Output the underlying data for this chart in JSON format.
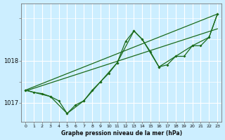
{
  "background_color": "#cceeff",
  "grid_color": "#ffffff",
  "line_color": "#1a6b1a",
  "title": "Graphe pression niveau de la mer (hPa)",
  "ylabel_ticks": [
    1017,
    1018
  ],
  "xlim": [
    -0.5,
    23.5
  ],
  "ylim": [
    1016.55,
    1019.35
  ],
  "ytick_fontsize": 6,
  "xtick_fontsize": 4.5,
  "x_ticks": [
    0,
    1,
    2,
    3,
    4,
    5,
    6,
    7,
    8,
    9,
    10,
    11,
    12,
    13,
    14,
    15,
    16,
    17,
    18,
    19,
    20,
    21,
    22,
    23
  ],
  "series": [
    {
      "x": [
        0,
        23
      ],
      "y": [
        1017.3,
        1019.1
      ],
      "marker": null,
      "linewidth": 0.9,
      "linestyle": "-"
    },
    {
      "x": [
        0,
        23
      ],
      "y": [
        1017.28,
        1018.75
      ],
      "marker": null,
      "linewidth": 0.9,
      "linestyle": "-"
    },
    {
      "x": [
        0,
        1,
        2,
        3,
        4,
        5,
        6,
        7,
        8,
        9,
        10,
        11,
        12,
        13,
        14,
        15,
        16,
        17,
        18,
        19,
        20,
        21,
        22,
        23
      ],
      "y": [
        1017.3,
        1017.25,
        1017.22,
        1017.15,
        1017.05,
        1016.75,
        1016.95,
        1017.05,
        1017.3,
        1017.5,
        1017.7,
        1017.95,
        1018.45,
        1018.7,
        1018.5,
        1018.2,
        1017.85,
        1017.9,
        1018.1,
        1018.1,
        1018.35,
        1018.35,
        1018.55,
        1019.1
      ],
      "marker": "D",
      "linewidth": 0.9,
      "linestyle": "-"
    },
    {
      "x": [
        0,
        3,
        5,
        7,
        9,
        11,
        13,
        14,
        16,
        18,
        20,
        22,
        23
      ],
      "y": [
        1017.3,
        1017.15,
        1016.75,
        1017.05,
        1017.5,
        1017.95,
        1018.7,
        1018.5,
        1017.85,
        1018.1,
        1018.35,
        1018.55,
        1019.1
      ],
      "marker": "D",
      "linewidth": 0.9,
      "linestyle": "-"
    }
  ]
}
